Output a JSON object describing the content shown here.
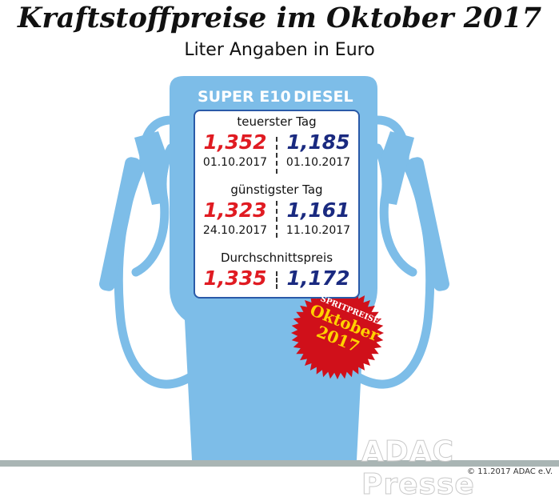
{
  "title": "Kraftstoffpreise im Oktober 2017",
  "subtitle": "Liter Angaben in Euro",
  "columns": [
    "SUPER E10",
    "DIESEL"
  ],
  "sections": [
    {
      "label": "teuerster Tag",
      "super_e10": {
        "price": "1,352",
        "date": "01.10.2017"
      },
      "diesel": {
        "price": "1,185",
        "date": "01.10.2017"
      }
    },
    {
      "label": "günstigster Tag",
      "super_e10": {
        "price": "1,323",
        "date": "24.10.2017"
      },
      "diesel": {
        "price": "1,161",
        "date": "11.10.2017"
      }
    },
    {
      "label": "Durchschnittspreis",
      "super_e10": {
        "price": "1,335"
      },
      "diesel": {
        "price": "1,172"
      }
    }
  ],
  "badge": {
    "line1": "SPRITPREISE",
    "line2": "Oktober",
    "line3": "2017"
  },
  "watermark": "ADAC Presse",
  "copyright": "© 11.2017 ADAC e.V.",
  "colors": {
    "pump": "#7dbde8",
    "super_e10": "#e01b22",
    "diesel": "#1a2a80",
    "badge": "#d0101a",
    "badge_text": "#ffd200",
    "bar": "#a9b5b4"
  }
}
